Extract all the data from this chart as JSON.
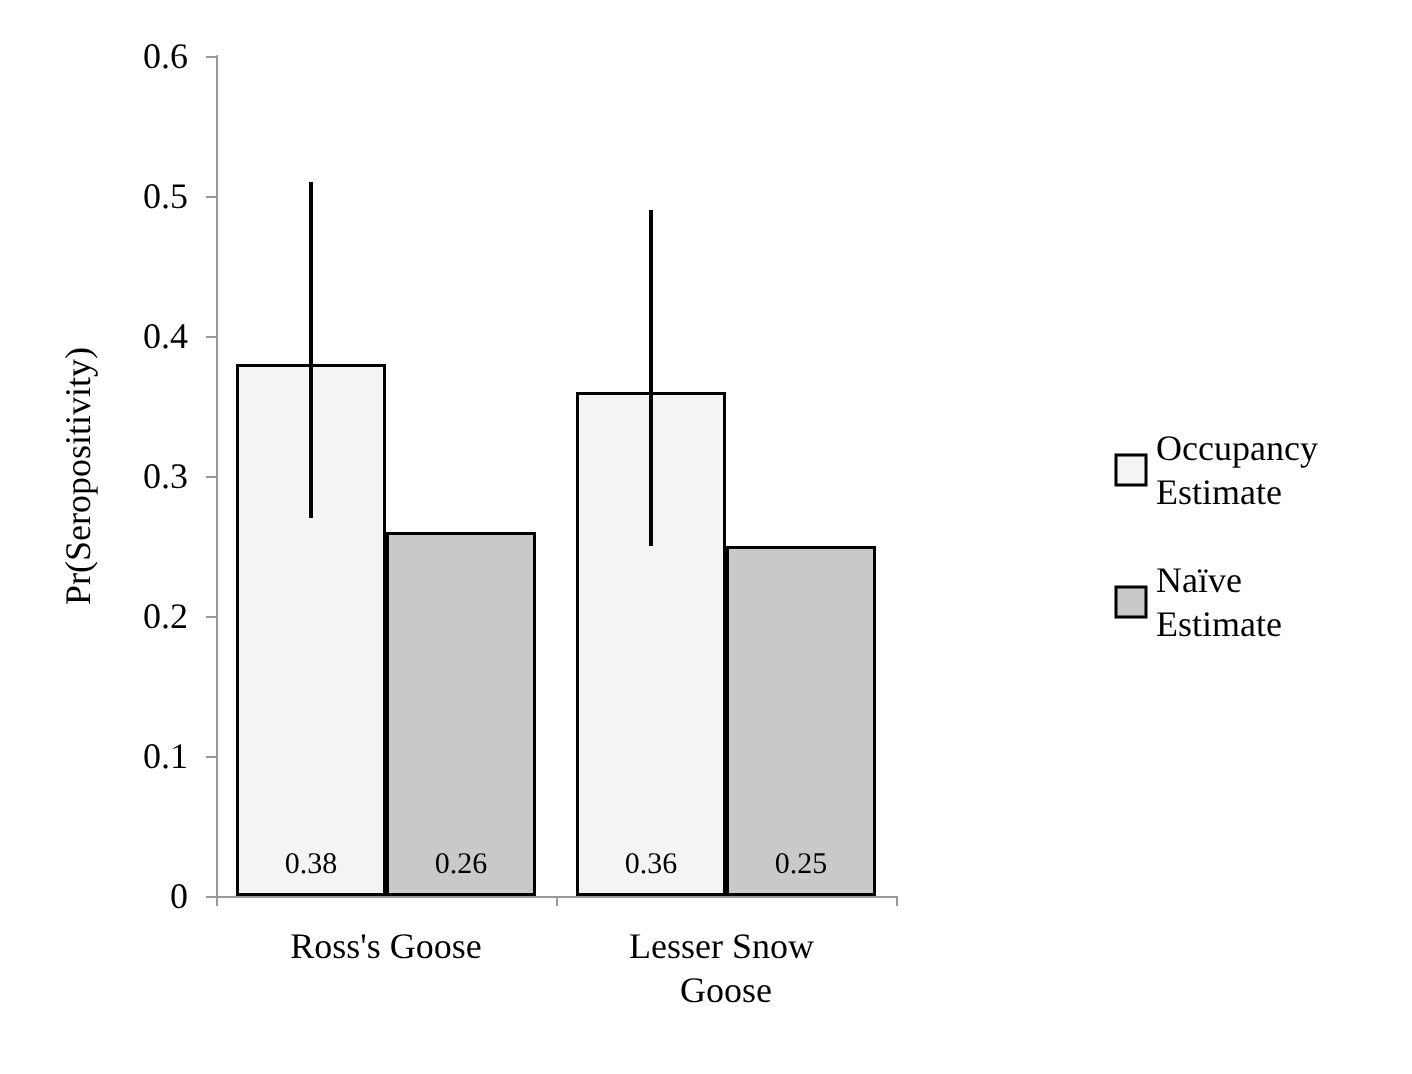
{
  "chart_data": {
    "type": "bar",
    "ylabel": "Pr(Seropositivity)",
    "categories": [
      "Ross's Goose",
      "Lesser Snow Goose"
    ],
    "series": [
      {
        "name": "Occupancy Estimate",
        "color": "#f4f4f4",
        "values": [
          0.38,
          0.36
        ],
        "errors": [
          [
            0.27,
            0.51
          ],
          [
            0.25,
            0.49
          ]
        ]
      },
      {
        "name": "Naïve Estimate",
        "color": "#c9c9c9",
        "values": [
          0.26,
          0.25
        ]
      }
    ],
    "ylim": [
      0,
      0.6
    ],
    "yticks": [
      0,
      0.1,
      0.2,
      0.3,
      0.4,
      0.5,
      0.6
    ],
    "grid": false,
    "legend": "right",
    "data_labels": true
  }
}
